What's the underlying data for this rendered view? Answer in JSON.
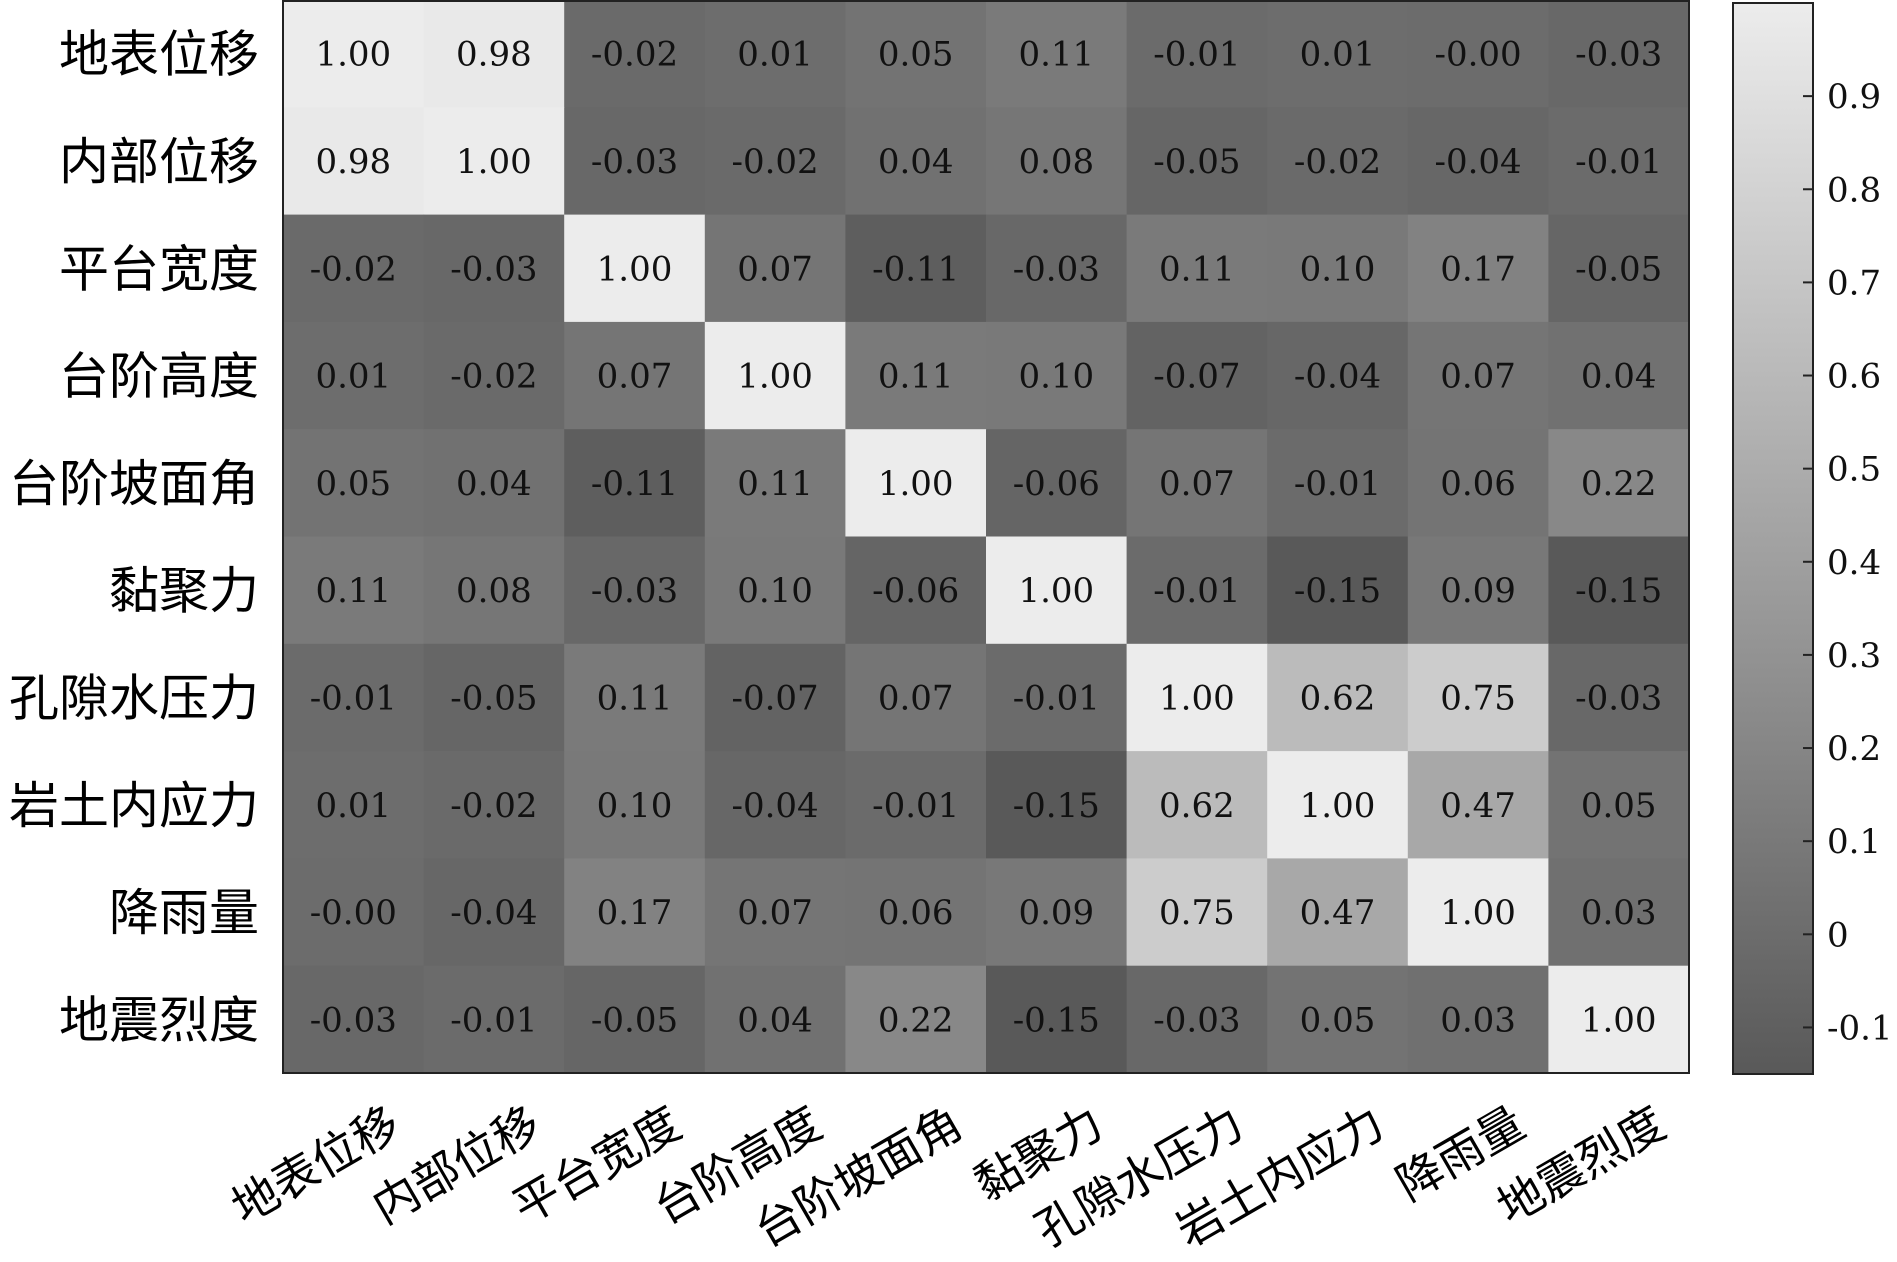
{
  "chart_data": {
    "type": "heatmap",
    "title": "",
    "xlabel": "",
    "ylabel": "",
    "labels": [
      "地表位移",
      "内部位移",
      "平台宽度",
      "台阶高度",
      "台阶坡面角",
      "黏聚力",
      "孔隙水压力",
      "岩土内应力",
      "降雨量",
      "地震烈度"
    ],
    "value_labels": [
      [
        "1.00",
        "0.98",
        "-0.02",
        "0.01",
        "0.05",
        "0.11",
        "-0.01",
        "0.01",
        "-0.00",
        "-0.03"
      ],
      [
        "0.98",
        "1.00",
        "-0.03",
        "-0.02",
        "0.04",
        "0.08",
        "-0.05",
        "-0.02",
        "-0.04",
        "-0.01"
      ],
      [
        "-0.02",
        "-0.03",
        "1.00",
        "0.07",
        "-0.11",
        "-0.03",
        "0.11",
        "0.10",
        "0.17",
        "-0.05"
      ],
      [
        "0.01",
        "-0.02",
        "0.07",
        "1.00",
        "0.11",
        "0.10",
        "-0.07",
        "-0.04",
        "0.07",
        "0.04"
      ],
      [
        "0.05",
        "0.04",
        "-0.11",
        "0.11",
        "1.00",
        "-0.06",
        "0.07",
        "-0.01",
        "0.06",
        "0.22"
      ],
      [
        "0.11",
        "0.08",
        "-0.03",
        "0.10",
        "-0.06",
        "1.00",
        "-0.01",
        "-0.15",
        "0.09",
        "-0.15"
      ],
      [
        "-0.01",
        "-0.05",
        "0.11",
        "-0.07",
        "0.07",
        "-0.01",
        "1.00",
        "0.62",
        "0.75",
        "-0.03"
      ],
      [
        "0.01",
        "-0.02",
        "0.10",
        "-0.04",
        "-0.01",
        "-0.15",
        "0.62",
        "1.00",
        "0.47",
        "0.05"
      ],
      [
        "-0.00",
        "-0.04",
        "0.17",
        "0.07",
        "0.06",
        "0.09",
        "0.75",
        "0.47",
        "1.00",
        "0.03"
      ],
      [
        "-0.03",
        "-0.01",
        "-0.05",
        "0.04",
        "0.22",
        "-0.15",
        "-0.03",
        "0.05",
        "0.03",
        "1.00"
      ]
    ],
    "colorbar": {
      "range": [
        -0.15,
        1.0
      ],
      "ticks": [
        -0.1,
        0,
        0.1,
        0.2,
        0.3,
        0.4,
        0.5,
        0.6,
        0.7,
        0.8,
        0.9
      ],
      "tick_labels": [
        "-0.1",
        "0",
        "0.1",
        "0.2",
        "0.3",
        "0.4",
        "0.5",
        "0.6",
        "0.7",
        "0.8",
        "0.9"
      ],
      "color_low": "#595959",
      "color_high": "#ececec"
    },
    "grid": false,
    "colorbar_position": "right"
  }
}
